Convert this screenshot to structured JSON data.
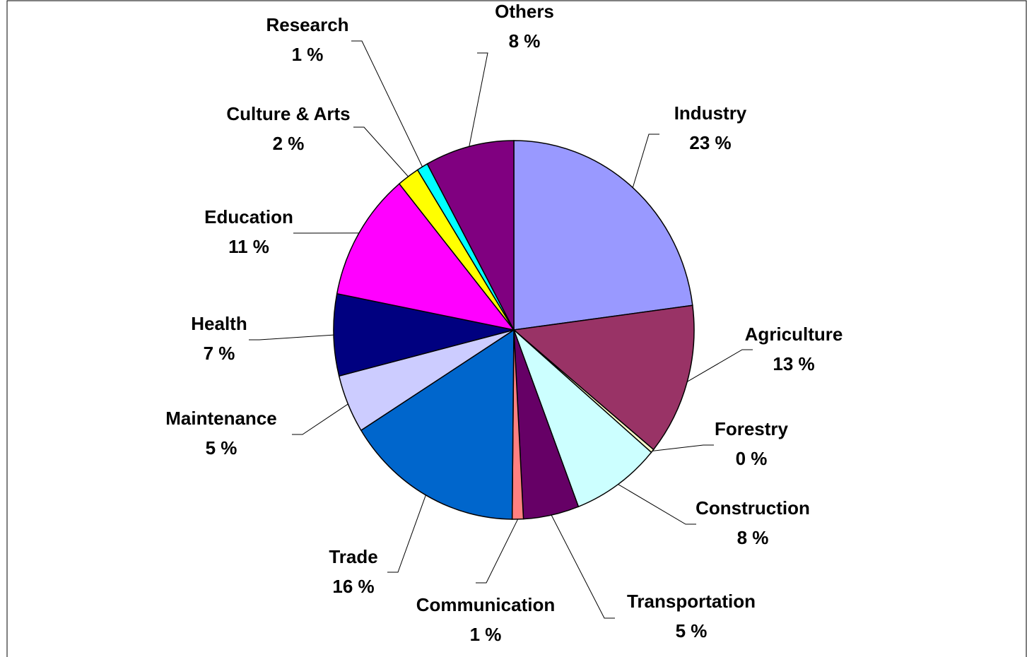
{
  "chart_data": {
    "type": "pie",
    "categories": [
      "Industry",
      "Agriculture",
      "Forestry",
      "Construction",
      "Transportation",
      "Communication",
      "Trade",
      "Maintenance",
      "Health",
      "Education",
      "Culture & Arts",
      "Research",
      "Others"
    ],
    "values": [
      23,
      13,
      0.3,
      8,
      5,
      1,
      16,
      5,
      7,
      11,
      2,
      1,
      8
    ],
    "value_labels": [
      "23 %",
      "13 %",
      "0 %",
      "8 %",
      "5 %",
      "1 %",
      "16 %",
      "5 %",
      "7 %",
      "11 %",
      "2 %",
      "1 %",
      "8 %"
    ],
    "colors": [
      "#9999ff",
      "#993366",
      "#ffffcc",
      "#ccffff",
      "#660066",
      "#ff8080",
      "#0066cc",
      "#ccccff",
      "#000080",
      "#ff00ff",
      "#ffff00",
      "#00ffff",
      "#800080"
    ]
  }
}
